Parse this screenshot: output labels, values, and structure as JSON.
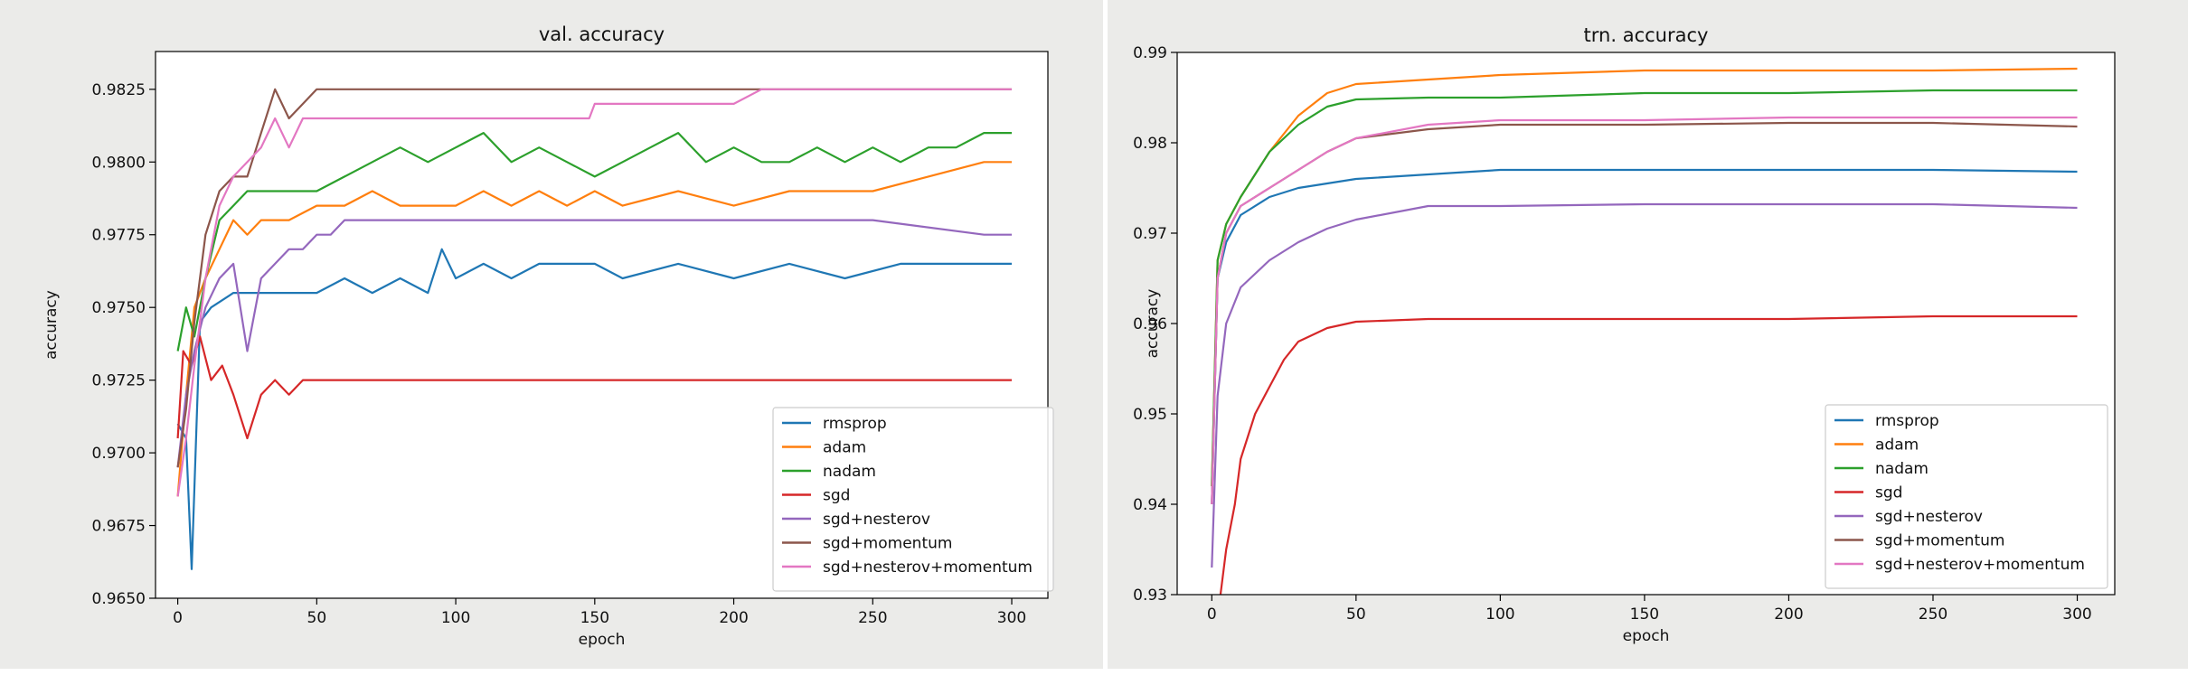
{
  "chart_data": [
    {
      "type": "line",
      "title": "val. accuracy",
      "xlabel": "epoch",
      "ylabel": "accuracy",
      "xlim": [
        -8,
        313
      ],
      "ylim": [
        0.965,
        0.9838
      ],
      "xticks": [
        0,
        50,
        100,
        150,
        200,
        250,
        300
      ],
      "yticks": [
        0.965,
        0.9675,
        0.97,
        0.9725,
        0.975,
        0.9775,
        0.98,
        0.9825
      ],
      "ytick_labels": [
        "0.9650",
        "0.9675",
        "0.9700",
        "0.9725",
        "0.9750",
        "0.9775",
        "0.9800",
        "0.9825"
      ],
      "legend": "lower-right",
      "grid": false,
      "series": [
        {
          "name": "rmsprop",
          "color": "#1f77b4",
          "x": [
            0,
            3,
            5,
            8,
            12,
            20,
            30,
            40,
            50,
            60,
            70,
            80,
            90,
            95,
            100,
            110,
            120,
            130,
            140,
            150,
            160,
            180,
            200,
            220,
            240,
            260,
            280,
            300
          ],
          "y": [
            0.971,
            0.9705,
            0.966,
            0.9745,
            0.975,
            0.9755,
            0.9755,
            0.9755,
            0.9755,
            0.976,
            0.9755,
            0.976,
            0.9755,
            0.977,
            0.976,
            0.9765,
            0.976,
            0.9765,
            0.9765,
            0.9765,
            0.976,
            0.9765,
            0.976,
            0.9765,
            0.976,
            0.9765,
            0.9765,
            0.9765
          ]
        },
        {
          "name": "adam",
          "color": "#ff7f0e",
          "x": [
            0,
            3,
            6,
            10,
            15,
            20,
            25,
            30,
            40,
            50,
            60,
            70,
            80,
            100,
            110,
            120,
            130,
            140,
            150,
            160,
            180,
            200,
            220,
            250,
            270,
            290,
            300
          ],
          "y": [
            0.9685,
            0.972,
            0.975,
            0.976,
            0.977,
            0.978,
            0.9775,
            0.978,
            0.978,
            0.9785,
            0.9785,
            0.979,
            0.9785,
            0.9785,
            0.979,
            0.9785,
            0.979,
            0.9785,
            0.979,
            0.9785,
            0.979,
            0.9785,
            0.979,
            0.979,
            0.9795,
            0.98,
            0.98
          ]
        },
        {
          "name": "nadam",
          "color": "#2ca02c",
          "x": [
            0,
            3,
            6,
            10,
            15,
            20,
            25,
            30,
            40,
            50,
            60,
            70,
            80,
            90,
            100,
            110,
            120,
            130,
            140,
            150,
            160,
            170,
            180,
            190,
            200,
            210,
            220,
            230,
            240,
            250,
            260,
            270,
            280,
            290,
            300
          ],
          "y": [
            0.9735,
            0.975,
            0.974,
            0.976,
            0.978,
            0.9785,
            0.979,
            0.979,
            0.979,
            0.979,
            0.9795,
            0.98,
            0.9805,
            0.98,
            0.9805,
            0.981,
            0.98,
            0.9805,
            0.98,
            0.9795,
            0.98,
            0.9805,
            0.981,
            0.98,
            0.9805,
            0.98,
            0.98,
            0.9805,
            0.98,
            0.9805,
            0.98,
            0.9805,
            0.9805,
            0.981,
            0.981
          ]
        },
        {
          "name": "sgd",
          "color": "#d62728",
          "x": [
            0,
            2,
            5,
            8,
            12,
            16,
            20,
            25,
            30,
            35,
            40,
            45,
            50,
            60,
            100,
            150,
            200,
            250,
            300
          ],
          "y": [
            0.9705,
            0.9735,
            0.973,
            0.974,
            0.9725,
            0.973,
            0.972,
            0.9705,
            0.972,
            0.9725,
            0.972,
            0.9725,
            0.9725,
            0.9725,
            0.9725,
            0.9725,
            0.9725,
            0.9725,
            0.9725
          ]
        },
        {
          "name": "sgd+nesterov",
          "color": "#9467bd",
          "x": [
            0,
            3,
            6,
            10,
            15,
            20,
            25,
            30,
            35,
            40,
            45,
            50,
            55,
            60,
            70,
            80,
            100,
            150,
            200,
            250,
            290,
            300
          ],
          "y": [
            0.9695,
            0.972,
            0.9735,
            0.975,
            0.976,
            0.9765,
            0.9735,
            0.976,
            0.9765,
            0.977,
            0.977,
            0.9775,
            0.9775,
            0.978,
            0.978,
            0.978,
            0.978,
            0.978,
            0.978,
            0.978,
            0.9775,
            0.9775
          ]
        },
        {
          "name": "sgd+momentum",
          "color": "#8c564b",
          "x": [
            0,
            3,
            6,
            10,
            15,
            20,
            25,
            30,
            35,
            40,
            45,
            50,
            55,
            60,
            100,
            150,
            200,
            250,
            300
          ],
          "y": [
            0.9695,
            0.9715,
            0.9745,
            0.9775,
            0.979,
            0.9795,
            0.9795,
            0.981,
            0.9825,
            0.9815,
            0.982,
            0.9825,
            0.9825,
            0.9825,
            0.9825,
            0.9825,
            0.9825,
            0.9825,
            0.9825
          ]
        },
        {
          "name": "sgd+nesterov+momentum",
          "color": "#e377c2",
          "x": [
            0,
            3,
            6,
            10,
            15,
            20,
            25,
            30,
            35,
            40,
            45,
            50,
            55,
            60,
            100,
            148,
            150,
            200,
            210,
            250,
            300
          ],
          "y": [
            0.9685,
            0.9705,
            0.973,
            0.976,
            0.9785,
            0.9795,
            0.98,
            0.9805,
            0.9815,
            0.9805,
            0.9815,
            0.9815,
            0.9815,
            0.9815,
            0.9815,
            0.9815,
            0.982,
            0.982,
            0.9825,
            0.9825,
            0.9825
          ]
        }
      ]
    },
    {
      "type": "line",
      "title": "trn. accuracy",
      "xlabel": "epoch",
      "ylabel": "accuracy",
      "xlim": [
        -12,
        313
      ],
      "ylim": [
        0.93,
        0.99
      ],
      "xticks": [
        0,
        50,
        100,
        150,
        200,
        250,
        300
      ],
      "yticks": [
        0.93,
        0.94,
        0.95,
        0.96,
        0.97,
        0.98,
        0.99
      ],
      "ytick_labels": [
        "0.93",
        "0.94",
        "0.95",
        "0.96",
        "0.97",
        "0.98",
        "0.99"
      ],
      "legend": "lower-right",
      "grid": false,
      "series": [
        {
          "name": "rmsprop",
          "color": "#1f77b4",
          "x": [
            0,
            2,
            5,
            10,
            20,
            30,
            40,
            50,
            75,
            100,
            150,
            200,
            250,
            300
          ],
          "y": [
            0.94,
            0.965,
            0.969,
            0.972,
            0.974,
            0.975,
            0.9755,
            0.976,
            0.9765,
            0.977,
            0.977,
            0.977,
            0.977,
            0.9768
          ]
        },
        {
          "name": "adam",
          "color": "#ff7f0e",
          "x": [
            0,
            2,
            5,
            10,
            20,
            30,
            40,
            50,
            75,
            100,
            150,
            200,
            250,
            300
          ],
          "y": [
            0.942,
            0.967,
            0.971,
            0.974,
            0.979,
            0.983,
            0.9855,
            0.9865,
            0.987,
            0.9875,
            0.988,
            0.988,
            0.988,
            0.9882
          ]
        },
        {
          "name": "nadam",
          "color": "#2ca02c",
          "x": [
            0,
            2,
            5,
            10,
            20,
            30,
            40,
            50,
            75,
            100,
            150,
            200,
            250,
            300
          ],
          "y": [
            0.942,
            0.967,
            0.971,
            0.974,
            0.979,
            0.982,
            0.984,
            0.9848,
            0.985,
            0.985,
            0.9855,
            0.9855,
            0.9858,
            0.9858
          ]
        },
        {
          "name": "sgd",
          "color": "#d62728",
          "x": [
            0,
            3,
            5,
            8,
            10,
            15,
            20,
            25,
            30,
            40,
            50,
            75,
            100,
            150,
            200,
            250,
            300
          ],
          "y": [
            0.925,
            0.93,
            0.935,
            0.94,
            0.945,
            0.95,
            0.953,
            0.956,
            0.958,
            0.9595,
            0.9602,
            0.9605,
            0.9605,
            0.9605,
            0.9605,
            0.9608,
            0.9608
          ]
        },
        {
          "name": "sgd+nesterov",
          "color": "#9467bd",
          "x": [
            0,
            2,
            5,
            10,
            20,
            30,
            40,
            50,
            75,
            100,
            150,
            200,
            250,
            300
          ],
          "y": [
            0.933,
            0.952,
            0.96,
            0.964,
            0.967,
            0.969,
            0.9705,
            0.9715,
            0.973,
            0.973,
            0.9732,
            0.9732,
            0.9732,
            0.9728
          ]
        },
        {
          "name": "sgd+momentum",
          "color": "#8c564b",
          "x": [
            0,
            2,
            5,
            10,
            20,
            30,
            40,
            50,
            75,
            100,
            150,
            200,
            250,
            300
          ],
          "y": [
            0.94,
            0.965,
            0.97,
            0.973,
            0.975,
            0.977,
            0.979,
            0.9805,
            0.9815,
            0.982,
            0.982,
            0.9822,
            0.9822,
            0.9818
          ]
        },
        {
          "name": "sgd+nesterov+momentum",
          "color": "#e377c2",
          "x": [
            0,
            2,
            5,
            10,
            20,
            30,
            40,
            50,
            75,
            100,
            150,
            200,
            250,
            300
          ],
          "y": [
            0.94,
            0.965,
            0.97,
            0.973,
            0.975,
            0.977,
            0.979,
            0.9805,
            0.982,
            0.9825,
            0.9825,
            0.9828,
            0.9828,
            0.9828
          ]
        }
      ]
    }
  ]
}
